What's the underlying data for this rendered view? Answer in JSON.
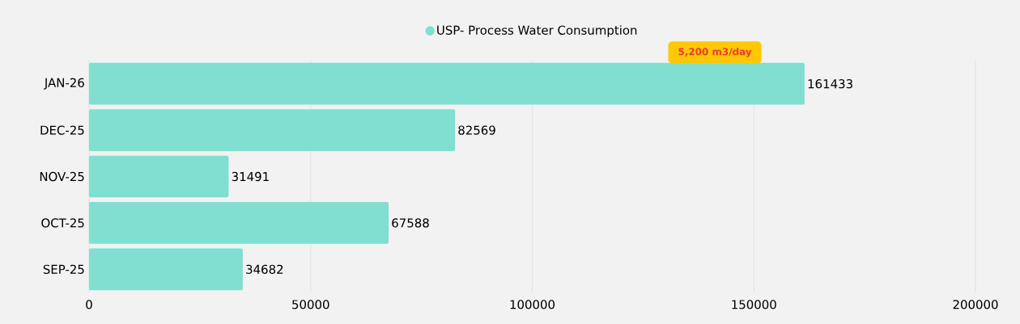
{
  "chart_data": {
    "type": "bar",
    "orientation": "horizontal",
    "categories": [
      "JAN-26",
      "DEC-25",
      "NOV-25",
      "OCT-25",
      "SEP-25"
    ],
    "series": [
      {
        "name": "USP- Process Water Consumption",
        "color": "#80dfd1",
        "values": [
          161433,
          82569,
          31491,
          67588,
          34682
        ]
      }
    ],
    "xlim": [
      0,
      200000
    ],
    "xticks": [
      0,
      50000,
      100000,
      150000,
      200000
    ],
    "grid": "x",
    "legend": "top",
    "data_labels": true,
    "annotations": [
      "5,200 m3/day"
    ]
  }
}
